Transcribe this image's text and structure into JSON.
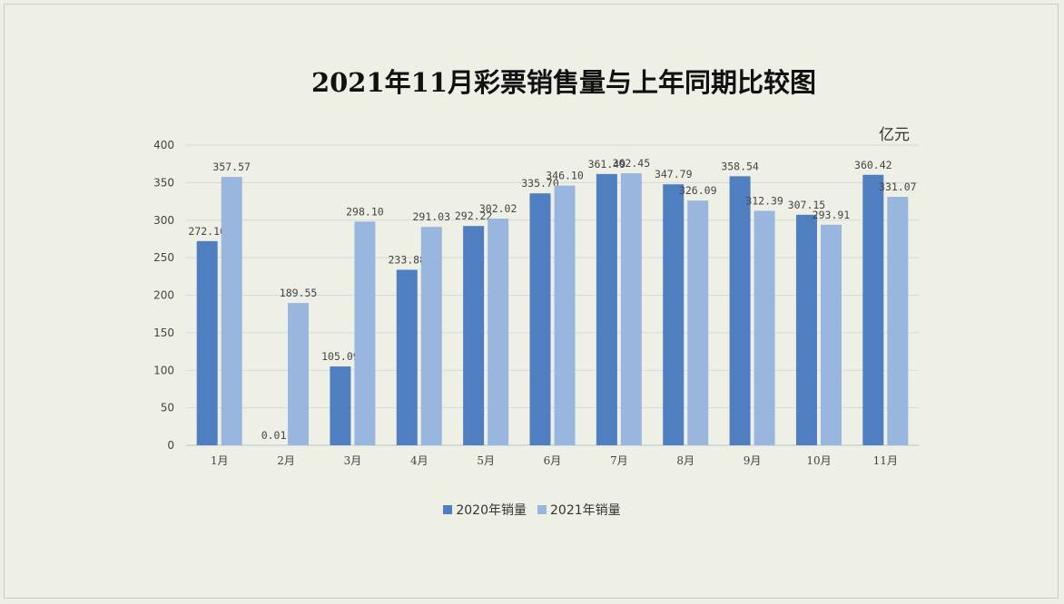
{
  "chart_data": {
    "type": "bar",
    "title": "2021年11月彩票销售量与上年同期比较图",
    "unit": "亿元",
    "categories": [
      "1月",
      "2月",
      "3月",
      "4月",
      "5月",
      "6月",
      "7月",
      "8月",
      "9月",
      "10月",
      "11月"
    ],
    "series": [
      {
        "name": "2020年销量",
        "color": "#4f7fc0",
        "values": [
          272.1,
          0.01,
          105.09,
          233.88,
          292.22,
          335.7,
          361.49,
          347.79,
          358.54,
          307.15,
          360.42
        ],
        "labels": [
          "272.10",
          "0.01",
          "105.09",
          "233.88",
          "292.22",
          "335.70",
          "361.49",
          "347.79",
          "358.54",
          "307.15",
          "360.42"
        ]
      },
      {
        "name": "2021年销量",
        "color": "#98b6de",
        "values": [
          357.57,
          189.55,
          298.1,
          291.03,
          302.02,
          346.1,
          362.45,
          326.09,
          312.39,
          293.91,
          331.07
        ],
        "labels": [
          "357.57",
          "189.55",
          "298.10",
          "291.03",
          "302.02",
          "346.10",
          "362.45",
          "326.09",
          "312.39",
          "293.91",
          "331.07"
        ]
      }
    ],
    "ylim": [
      0,
      400
    ],
    "yticks": [
      0,
      50,
      100,
      150,
      200,
      250,
      300,
      350,
      400
    ],
    "grid": true,
    "legend": "bottom"
  }
}
